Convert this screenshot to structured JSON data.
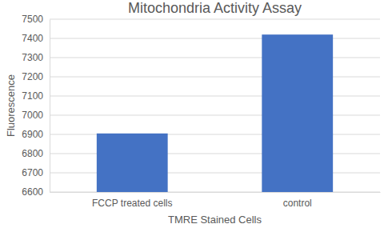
{
  "chart_data": {
    "type": "bar",
    "title": "Mitochondria Activity Assay",
    "x_label": "TMRE Stained Cells",
    "y_label": "Fluorescence",
    "categories": [
      "FCCP treated cells",
      "control"
    ],
    "values": [
      6905,
      7420
    ],
    "color": "#4472c4",
    "ylim": [
      6600,
      7500
    ],
    "yticks": [
      6600,
      6700,
      6800,
      6900,
      7000,
      7100,
      7200,
      7300,
      7400,
      7500
    ],
    "grid": true
  }
}
